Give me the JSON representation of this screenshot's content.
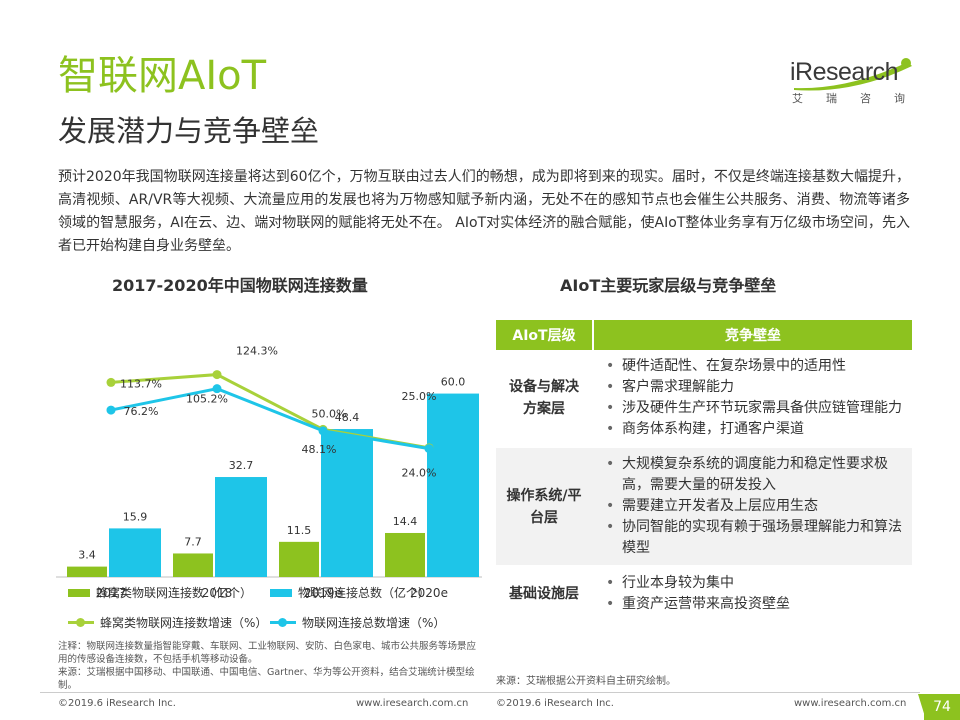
{
  "header": {
    "title": "智联网AIoT",
    "subtitle": "发展潜力与竞争壁垒",
    "logo_word": "iResearch",
    "logo_sub": "艾瑞咨询"
  },
  "intro": "预计2020年我国物联网连接量将达到60亿个，万物互联由过去人们的畅想，成为即将到来的现实。届时，不仅是终端连接基数大幅提升，高清视频、AR/VR等大视频、大流量应用的发展也将为万物感知赋予新内涵，无处不在的感知节点也会催生公共服务、消费、物流等诸多领域的智慧服务，AI在云、边、端对物联网的赋能将无处不在。 AIoT对实体经济的融合赋能，使AIoT整体业务享有万亿级市场空间，先入者已开始构建自身业务壁垒。",
  "chart_title": "2017-2020年中国物联网连接数量",
  "table_title": "AIoT主要玩家层级与竞争壁垒",
  "chart_data": {
    "type": "bar",
    "categories": [
      "2017",
      "2018",
      "2019e",
      "2020e"
    ],
    "series": [
      {
        "name": "蜂窝类物联网连接数（亿个）",
        "kind": "bar",
        "color": "#8dc21f",
        "values": [
          3.4,
          7.7,
          11.5,
          14.4
        ],
        "labels": [
          "3.4",
          "7.7",
          "11.5",
          "14.4"
        ]
      },
      {
        "name": "物联网连接总数（亿个）",
        "kind": "bar",
        "color": "#1ec5e8",
        "values": [
          15.9,
          32.7,
          48.4,
          60.0
        ],
        "labels": [
          "15.9",
          "32.7",
          "48.4",
          "60.0"
        ]
      },
      {
        "name": "蜂窝类物联网连接数增速（%）",
        "kind": "line",
        "color": "#a8d13a",
        "values": [
          113.7,
          124.3,
          50.0,
          25.0
        ],
        "labels": [
          "113.7%",
          "124.3%",
          "50.0%",
          "25.0%"
        ]
      },
      {
        "name": "物联网连接总数增速（%）",
        "kind": "line",
        "color": "#1ec5e8",
        "values": [
          76.2,
          105.2,
          48.1,
          24.0
        ],
        "labels": [
          "76.2%",
          "105.2%",
          "48.1%",
          "24.0%"
        ]
      }
    ],
    "bar_ylim": [
      0,
      70
    ],
    "line_ylim": [
      -150,
      140
    ],
    "legend": "bottom"
  },
  "notes": [
    "注释：物联网连接数量指智能穿戴、车联网、工业物联网、安防、白色家电、城市公共服务等场景应用的传感设备连接数，不包括手机等移动设备。",
    "来源：艾瑞根据中国移动、中国联通、中国电信、Gartner、华为等公开资料，结合艾瑞统计模型绘制。"
  ],
  "table": {
    "headers": [
      "AIoT层级",
      "竞争壁垒"
    ],
    "rows": [
      {
        "layer": "设备与解决方案层",
        "layer_lines": [
          "设备与解决",
          "方案层"
        ],
        "items": [
          "硬件适配性、在复杂场景中的适用性",
          "客户需求理解能力",
          "涉及硬件生产环节玩家需具备供应链管理能力",
          "商务体系构建，打通客户渠道"
        ]
      },
      {
        "layer": "操作系统/平台层",
        "layer_lines": [
          "操作系统/平",
          "台层"
        ],
        "items": [
          "大规模复杂系统的调度能力和稳定性要求极高，需要大量的研发投入",
          "需要建立开发者及上层应用生态",
          "协同智能的实现有赖于强场景理解能力和算法模型"
        ]
      },
      {
        "layer": "基础设施层",
        "layer_lines": [
          "基础设施层"
        ],
        "items": [
          "行业本身较为集中",
          "重资产运营带来高投资壁垒"
        ]
      }
    ],
    "source": "来源：艾瑞根据公开资料自主研究绘制。"
  },
  "footer": {
    "left_copyright": "©2019.6 iResearch Inc.",
    "left_url": "www.iresearch.com.cn",
    "right_copyright": "©2019.6 iResearch Inc.",
    "right_url": "www.iresearch.com.cn",
    "page": "74"
  }
}
